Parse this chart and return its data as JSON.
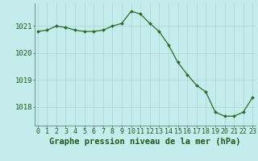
{
  "x": [
    0,
    1,
    2,
    3,
    4,
    5,
    6,
    7,
    8,
    9,
    10,
    11,
    12,
    13,
    14,
    15,
    16,
    17,
    18,
    19,
    20,
    21,
    22,
    23
  ],
  "y": [
    1020.8,
    1020.85,
    1021.0,
    1020.95,
    1020.85,
    1020.8,
    1020.8,
    1020.85,
    1021.0,
    1021.1,
    1021.55,
    1021.45,
    1021.1,
    1020.8,
    1020.3,
    1019.65,
    1019.2,
    1018.8,
    1018.55,
    1017.8,
    1017.65,
    1017.65,
    1017.8,
    1018.35
  ],
  "yticks": [
    1018,
    1019,
    1020,
    1021
  ],
  "xticks": [
    0,
    1,
    2,
    3,
    4,
    5,
    6,
    7,
    8,
    9,
    10,
    11,
    12,
    13,
    14,
    15,
    16,
    17,
    18,
    19,
    20,
    21,
    22,
    23
  ],
  "xlabel": "Graphe pression niveau de la mer (hPa)",
  "ylim_min": 1017.3,
  "ylim_max": 1021.85,
  "xlim_min": -0.3,
  "xlim_max": 23.3,
  "line_color": "#2a6a2a",
  "marker_color": "#2a6a2a",
  "bg_color": "#c5ecec",
  "grid_color": "#a8d4d4",
  "xlabel_color": "#1a5c1a",
  "tick_color": "#1a5c1a",
  "xlabel_fontsize": 7.5,
  "xtick_fontsize": 6.0,
  "ytick_fontsize": 6.5
}
